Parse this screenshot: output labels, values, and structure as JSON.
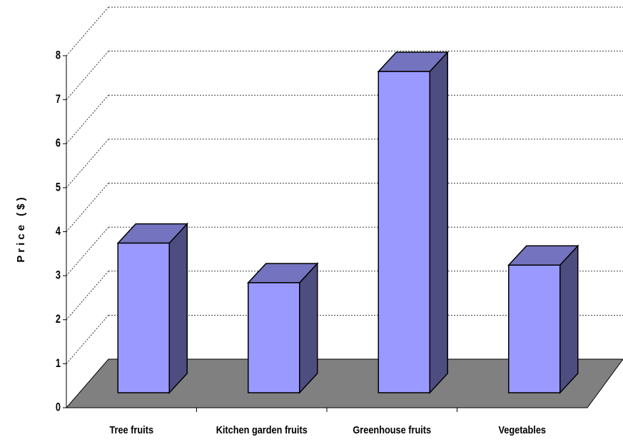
{
  "chart_data": {
    "type": "bar",
    "y_label": "Price ($)",
    "categories": [
      "Tree fruits",
      "Kitchen garden fruits",
      "Greenhouse fruits",
      "Vegetables"
    ],
    "values": [
      3.4,
      2.5,
      7.3,
      2.9
    ],
    "color": "#9999ff",
    "ylim": [
      0,
      8
    ],
    "yticks": [
      0,
      1,
      2,
      3,
      4,
      5,
      6,
      7,
      8
    ],
    "grid": true
  }
}
